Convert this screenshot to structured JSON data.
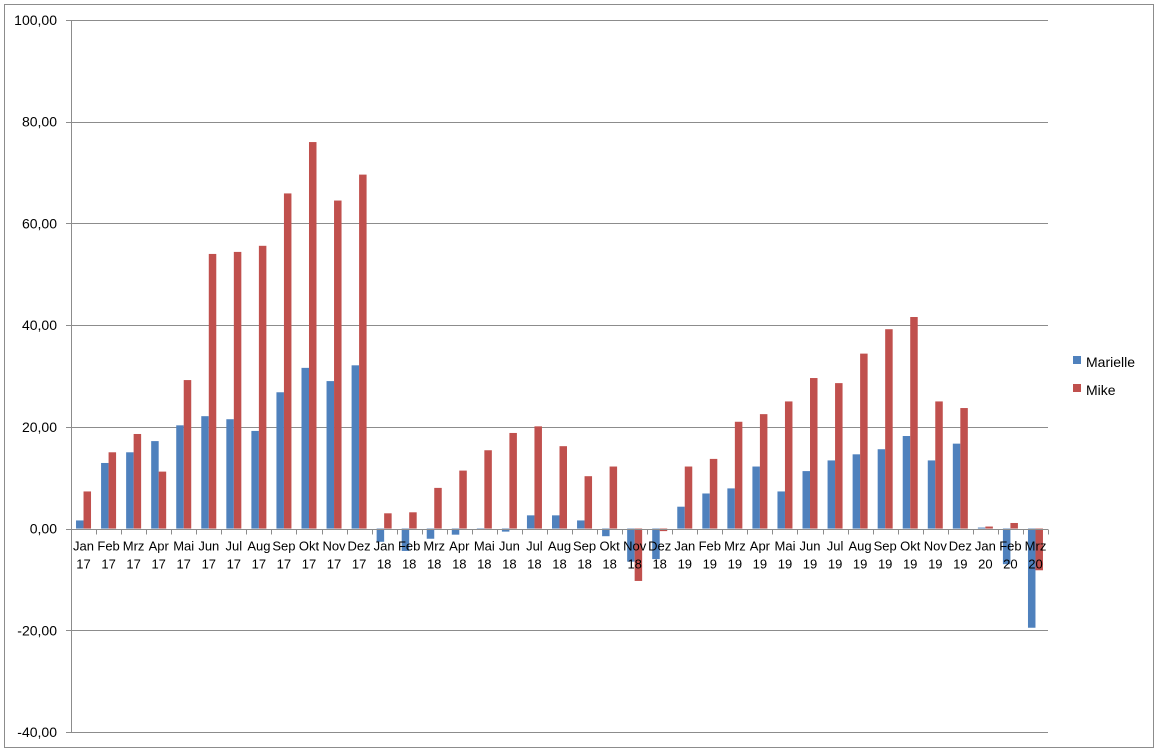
{
  "chart_data": {
    "type": "bar",
    "categories": [
      [
        "Jan",
        "17"
      ],
      [
        "Feb",
        "17"
      ],
      [
        "Mrz",
        "17"
      ],
      [
        "Apr",
        "17"
      ],
      [
        "Mai",
        "17"
      ],
      [
        "Jun",
        "17"
      ],
      [
        "Jul",
        "17"
      ],
      [
        "Aug",
        "17"
      ],
      [
        "Sep",
        "17"
      ],
      [
        "Okt",
        "17"
      ],
      [
        "Nov",
        "17"
      ],
      [
        "Dez",
        "17"
      ],
      [
        "Jan",
        "18"
      ],
      [
        "Feb",
        "18"
      ],
      [
        "Mrz",
        "18"
      ],
      [
        "Apr",
        "18"
      ],
      [
        "Mai",
        "18"
      ],
      [
        "Jun",
        "18"
      ],
      [
        "Jul",
        "18"
      ],
      [
        "Aug",
        "18"
      ],
      [
        "Sep",
        "18"
      ],
      [
        "Okt",
        "18"
      ],
      [
        "Nov",
        "18"
      ],
      [
        "Dez",
        "18"
      ],
      [
        "Jan",
        "19"
      ],
      [
        "Feb",
        "19"
      ],
      [
        "Mrz",
        "19"
      ],
      [
        "Apr",
        "19"
      ],
      [
        "Mai",
        "19"
      ],
      [
        "Jun",
        "19"
      ],
      [
        "Jul",
        "19"
      ],
      [
        "Aug",
        "19"
      ],
      [
        "Sep",
        "19"
      ],
      [
        "Okt",
        "19"
      ],
      [
        "Nov",
        "19"
      ],
      [
        "Dez",
        "19"
      ],
      [
        "Jan",
        "20"
      ],
      [
        "Feb",
        "20"
      ],
      [
        "Mrz",
        "20"
      ]
    ],
    "series": [
      {
        "name": "Marielle",
        "color": "#4f81bd",
        "values": [
          1.6,
          12.9,
          15.0,
          17.2,
          20.3,
          22.1,
          21.5,
          19.2,
          26.8,
          31.6,
          29.0,
          32.1,
          -2.6,
          -4.4,
          -2.0,
          -1.2,
          0.0,
          -0.6,
          2.6,
          2.6,
          1.6,
          -1.5,
          -6.5,
          -6.0,
          4.3,
          6.9,
          7.9,
          12.2,
          7.3,
          11.3,
          13.4,
          14.6,
          15.6,
          18.2,
          13.4,
          16.7,
          0.2,
          -7.0,
          -19.5
        ]
      },
      {
        "name": "Mike",
        "color": "#c0504d",
        "values": [
          7.3,
          15.0,
          18.6,
          11.2,
          29.2,
          54.0,
          54.4,
          55.6,
          65.9,
          76.0,
          64.5,
          69.6,
          3.0,
          3.2,
          8.0,
          11.4,
          15.4,
          18.8,
          20.1,
          16.2,
          10.3,
          12.2,
          -10.3,
          -0.5,
          12.2,
          13.7,
          21.0,
          22.5,
          25.0,
          29.6,
          28.6,
          34.4,
          39.2,
          41.6,
          25.0,
          23.7,
          0.4,
          1.1,
          -8.2
        ]
      }
    ],
    "ylim": [
      -40,
      100
    ],
    "yticks": [
      "100,00",
      "80,00",
      "60,00",
      "40,00",
      "20,00",
      "0,00",
      "-20,00",
      "-40,00"
    ],
    "ytick_values": [
      100,
      80,
      60,
      40,
      20,
      0,
      -20,
      -40
    ],
    "grid": true,
    "legend_position": "right"
  }
}
